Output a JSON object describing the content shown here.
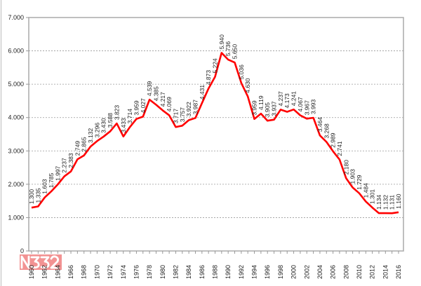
{
  "chart_data": {
    "type": "line",
    "title": "",
    "xlabel": "",
    "ylabel": "",
    "ylim": [
      0,
      7000
    ],
    "yticks": [
      "0",
      "1.000",
      "2.000",
      "3.000",
      "4.000",
      "5.000",
      "6.000",
      "7.000"
    ],
    "grid": true,
    "legend": "none",
    "line_color": "#ff0000",
    "x": [
      1960,
      1961,
      1962,
      1963,
      1964,
      1965,
      1966,
      1967,
      1968,
      1969,
      1970,
      1971,
      1972,
      1973,
      1974,
      1975,
      1976,
      1977,
      1978,
      1979,
      1980,
      1981,
      1982,
      1983,
      1984,
      1985,
      1986,
      1987,
      1988,
      1989,
      1990,
      1991,
      1992,
      1993,
      1994,
      1995,
      1996,
      1997,
      1998,
      1999,
      2000,
      2001,
      2002,
      2003,
      2004,
      2005,
      2006,
      2007,
      2008,
      2009,
      2010,
      2011,
      2012,
      2013,
      2014,
      2015,
      2016
    ],
    "values": [
      1300,
      1335,
      1603,
      1785,
      1997,
      2237,
      2383,
      2749,
      2865,
      3132,
      3296,
      3430,
      3588,
      3823,
      3433,
      3714,
      3959,
      4027,
      4539,
      4385,
      4217,
      4069,
      3717,
      3757,
      3922,
      3987,
      4431,
      4873,
      5224,
      5940,
      5736,
      5650,
      5036,
      4630,
      3959,
      4119,
      3905,
      3937,
      4237,
      4173,
      4241,
      4067,
      3967,
      3993,
      3464,
      3268,
      2989,
      2741,
      2180,
      1903,
      1729,
      1484,
      1301,
      1134,
      1132,
      1131,
      1160
    ],
    "labels": [
      "1.300",
      "1.335",
      "1.603",
      "1.785",
      "1.997",
      "2.237",
      "2.383",
      "2.749",
      "2.865",
      "3.132",
      "3.296",
      "3.430",
      "3.588",
      "3.823",
      "3.433",
      "3.714",
      "3.959",
      "4.027",
      "4.539",
      "4.385",
      "4.217",
      "4.069",
      "3.717",
      "3.757",
      "3.922",
      "3.987",
      "4.431",
      "4.873",
      "5.224",
      "5.940",
      "5.736",
      "5.650",
      "5.036",
      "4.630",
      "3.959",
      "4.119",
      "3.905",
      "3.937",
      "4.237",
      "4.173",
      "4.241",
      "4.067",
      "3.967",
      "3.993",
      "3.464",
      "3.268",
      "2.989",
      "2.741",
      "2.180",
      "1.903",
      "1.729",
      "1.484",
      "1.301",
      "1.134",
      "1.132",
      "1.131",
      "1.160"
    ],
    "xtick_labels": [
      "1960",
      "1962",
      "1964",
      "1966",
      "1968",
      "1970",
      "1972",
      "1974",
      "1976",
      "1978",
      "1980",
      "1982",
      "1984",
      "1986",
      "1988",
      "1990",
      "1992",
      "1994",
      "1996",
      "1998",
      "2000",
      "2002",
      "2004",
      "2006",
      "2008",
      "2010",
      "2012",
      "2014",
      "2016"
    ]
  },
  "watermark": {
    "text": "N332",
    "color": "#f08080"
  }
}
